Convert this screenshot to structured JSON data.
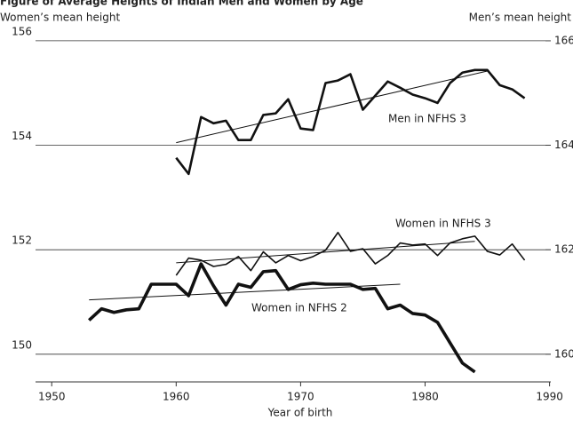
{
  "chart_data": {
    "type": "line",
    "title": "Figure of Average Heights of Indian Men and Women by Age",
    "ylabel": "Women’s mean height",
    "y2label": "Men’s mean height",
    "xlabel": "Year of birth",
    "xlim": [
      1948.7,
      1990.1
    ],
    "xticks": [
      1950,
      1960,
      1970,
      1980,
      1990
    ],
    "ylim": [
      149.47,
      156.27
    ],
    "yticks": [
      150,
      152,
      154,
      156
    ],
    "y2lim": [
      159.47,
      166.27
    ],
    "y2ticks": [
      160,
      162,
      164,
      166
    ],
    "grid": true,
    "series": [
      {
        "name": "Men in NFHS 3",
        "color": "#111111",
        "axis": "y2",
        "x": [
          1960,
          1961,
          1962,
          1963,
          1964,
          1965,
          1966,
          1967,
          1968,
          1969,
          1970,
          1971,
          1972,
          1973,
          1974,
          1975,
          1976,
          1977,
          1978,
          1979,
          1980,
          1981,
          1982,
          1983,
          1984,
          1985,
          1986,
          1987,
          1988
        ],
        "values": [
          163.76,
          163.45,
          164.54,
          164.42,
          164.47,
          164.1,
          164.1,
          164.58,
          164.61,
          164.88,
          164.32,
          164.29,
          165.19,
          165.24,
          165.36,
          164.68,
          164.95,
          165.22,
          165.1,
          164.97,
          164.9,
          164.81,
          165.19,
          165.39,
          165.44,
          165.44,
          165.15,
          165.07,
          164.9
        ]
      },
      {
        "name": "Women in NFHS 3",
        "color": "#111111",
        "x": [
          1960,
          1961,
          1962,
          1963,
          1964,
          1965,
          1966,
          1967,
          1968,
          1969,
          1970,
          1971,
          1972,
          1973,
          1974,
          1975,
          1976,
          1977,
          1978,
          1979,
          1980,
          1981,
          1982,
          1983,
          1984,
          1985,
          1986,
          1987,
          1988
        ],
        "values": [
          151.51,
          151.84,
          151.8,
          151.68,
          151.72,
          151.87,
          151.6,
          151.96,
          151.75,
          151.89,
          151.79,
          151.87,
          151.99,
          152.33,
          151.97,
          152.02,
          151.73,
          151.89,
          152.13,
          152.09,
          152.11,
          151.89,
          152.13,
          152.21,
          152.26,
          151.97,
          151.9,
          152.11,
          151.8
        ]
      },
      {
        "name": "Women in NFHS 2",
        "color": "#111111",
        "x": [
          1953,
          1954,
          1955,
          1956,
          1957,
          1958,
          1959,
          1960,
          1961,
          1962,
          1963,
          1964,
          1965,
          1966,
          1967,
          1968,
          1969,
          1970,
          1971,
          1972,
          1973,
          1974,
          1975,
          1976,
          1977,
          1978,
          1979,
          1980,
          1981,
          1982,
          1983,
          1984
        ],
        "values": [
          150.65,
          150.87,
          150.8,
          150.85,
          150.87,
          151.34,
          151.34,
          151.34,
          151.12,
          151.73,
          151.31,
          150.94,
          151.34,
          151.28,
          151.58,
          151.6,
          151.24,
          151.33,
          151.36,
          151.34,
          151.34,
          151.34,
          151.24,
          151.26,
          150.87,
          150.94,
          150.78,
          150.75,
          150.61,
          150.22,
          149.83,
          149.66
        ]
      }
    ],
    "trends": [
      {
        "axis": "y2",
        "x": [
          1960,
          1985
        ],
        "values": [
          164.05,
          165.42
        ]
      },
      {
        "x": [
          1960,
          1984
        ],
        "values": [
          151.75,
          152.16
        ]
      },
      {
        "x": [
          1953,
          1978
        ],
        "values": [
          151.04,
          151.34
        ]
      }
    ]
  }
}
